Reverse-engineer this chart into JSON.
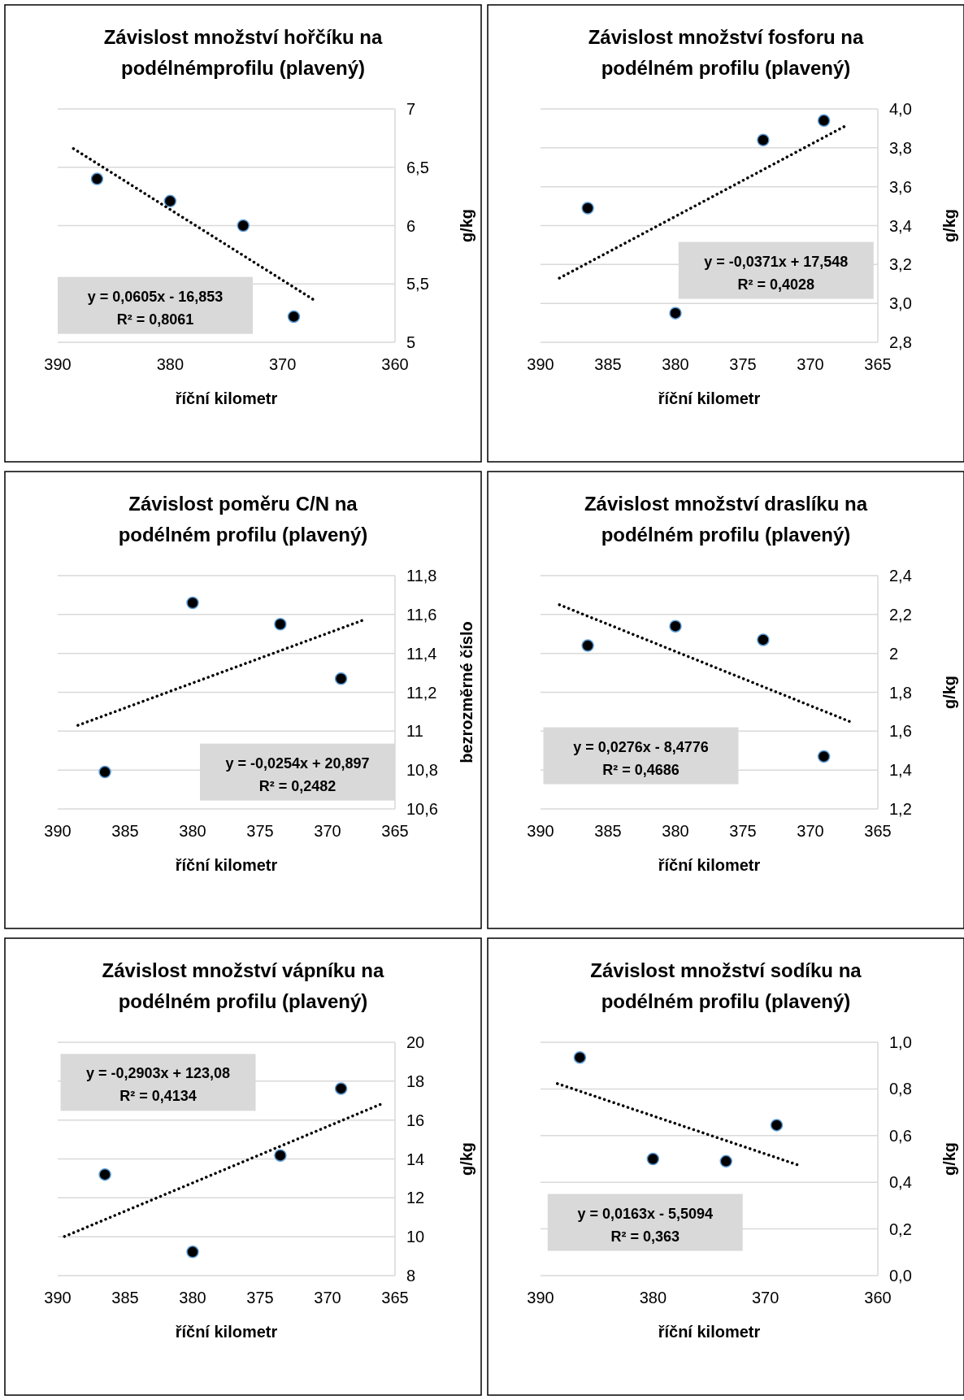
{
  "chart_data": [
    {
      "type": "scatter",
      "title": "Závislost množství hořčíku na\npodélnémprofilu (plavený)",
      "xlabel": "říční kilometr",
      "ylabel": "g/kg",
      "xlim": [
        390,
        360
      ],
      "xticks": [
        390,
        380,
        370,
        360
      ],
      "ylim": [
        5,
        7
      ],
      "yticks": [
        5,
        {
          "value": 5.5,
          "label": "5,5"
        },
        6,
        {
          "value": 6.5,
          "label": "6,5"
        },
        7
      ],
      "grid": "y",
      "annotations": [
        "y = 0,0605x - 16,853",
        "R² = 0,8061"
      ],
      "series": [
        {
          "type": "scatter",
          "color": "#000000",
          "marker": "circle",
          "x": [
            386.5,
            380,
            373.5,
            369
          ],
          "values": [
            6.4,
            6.21,
            6.0,
            5.22
          ]
        },
        {
          "type": "line",
          "color": "#000000",
          "marker": "none",
          "line_style": "dotted",
          "x": [
            388.6,
            367
          ],
          "values": [
            6.66,
            5.35
          ]
        }
      ]
    },
    {
      "type": "scatter",
      "title": "Závislost množství fosforu na\npodélném profilu (plavený)",
      "xlabel": "říční kilometr",
      "ylabel": "g/kg",
      "xlim": [
        390,
        365
      ],
      "xticks": [
        390,
        385,
        380,
        375,
        370,
        365
      ],
      "ylim": [
        2.8,
        4.0
      ],
      "yticks": [
        {
          "value": 2.8,
          "label": "2,8"
        },
        {
          "value": 3.0,
          "label": "3,0"
        },
        {
          "value": 3.2,
          "label": "3,2"
        },
        {
          "value": 3.4,
          "label": "3,4"
        },
        {
          "value": 3.6,
          "label": "3,6"
        },
        {
          "value": 3.8,
          "label": "3,8"
        },
        {
          "value": 4.0,
          "label": "4,0"
        }
      ],
      "grid": "y",
      "annotations": [
        "y = -0,0371x + 17,548",
        "R² = 0,4028"
      ],
      "series": [
        {
          "type": "scatter",
          "color": "#000000",
          "marker": "circle",
          "x": [
            386.5,
            380,
            373.5,
            369
          ],
          "values": [
            3.49,
            2.95,
            3.84,
            3.94
          ]
        },
        {
          "type": "line",
          "color": "#000000",
          "marker": "none",
          "line_style": "dotted",
          "x": [
            388.6,
            367.2
          ],
          "values": [
            3.13,
            3.92
          ]
        }
      ]
    },
    {
      "type": "scatter",
      "title": "Závislost poměru C/N na\npodélném profilu (plavený)",
      "xlabel": "říční kilometr",
      "ylabel": "bezrozměrné číslo",
      "xlim": [
        390,
        365
      ],
      "xticks": [
        390,
        385,
        380,
        375,
        370,
        365
      ],
      "ylim": [
        10.6,
        11.8
      ],
      "yticks": [
        {
          "value": 10.6,
          "label": "10,6"
        },
        {
          "value": 10.8,
          "label": "10,8"
        },
        11,
        {
          "value": 11.2,
          "label": "11,2"
        },
        {
          "value": 11.4,
          "label": "11,4"
        },
        {
          "value": 11.6,
          "label": "11,6"
        },
        {
          "value": 11.8,
          "label": "11,8"
        }
      ],
      "grid": "y",
      "annotations": [
        "y = -0,0254x + 20,897",
        "R² = 0,2482"
      ],
      "series": [
        {
          "type": "scatter",
          "color": "#000000",
          "marker": "circle",
          "x": [
            386.5,
            380,
            373.5,
            369
          ],
          "values": [
            10.79,
            11.66,
            11.55,
            11.27
          ]
        },
        {
          "type": "line",
          "color": "#000000",
          "marker": "none",
          "line_style": "dotted",
          "x": [
            388.5,
            367.4
          ],
          "values": [
            11.03,
            11.57
          ]
        }
      ]
    },
    {
      "type": "scatter",
      "title": "Závislost množství draslíku na\npodélném profilu (plavený)",
      "xlabel": "říční kilometr",
      "ylabel": "g/kg",
      "xlim": [
        390,
        365
      ],
      "xticks": [
        390,
        385,
        380,
        375,
        370,
        365
      ],
      "ylim": [
        1.2,
        2.4
      ],
      "yticks": [
        {
          "value": 1.2,
          "label": "1,2"
        },
        {
          "value": 1.4,
          "label": "1,4"
        },
        {
          "value": 1.6,
          "label": "1,6"
        },
        {
          "value": 1.8,
          "label": "1,8"
        },
        2,
        {
          "value": 2.2,
          "label": "2,2"
        },
        {
          "value": 2.4,
          "label": "2,4"
        }
      ],
      "grid": "y",
      "annotations": [
        "y = 0,0276x - 8,4776",
        "R² = 0,4686"
      ],
      "series": [
        {
          "type": "scatter",
          "color": "#000000",
          "marker": "circle",
          "x": [
            386.5,
            380,
            373.5,
            369
          ],
          "values": [
            2.04,
            2.14,
            2.07,
            1.47
          ]
        },
        {
          "type": "line",
          "color": "#000000",
          "marker": "none",
          "line_style": "dotted",
          "x": [
            388.6,
            367.1
          ],
          "values": [
            2.25,
            1.65
          ]
        }
      ]
    },
    {
      "type": "scatter",
      "title": "Závislost množství vápníku na\npodélném profilu (plavený)",
      "xlabel": "říční kilometr",
      "ylabel": "g/kg",
      "xlim": [
        390,
        365
      ],
      "xticks": [
        390,
        385,
        380,
        375,
        370,
        365
      ],
      "ylim": [
        8,
        20
      ],
      "yticks": [
        8,
        10,
        12,
        14,
        16,
        18,
        20
      ],
      "grid": "y",
      "annotations": [
        "y = -0,2903x + 123,08",
        "R² = 0,4134"
      ],
      "series": [
        {
          "type": "scatter",
          "color": "#000000",
          "marker": "circle",
          "x": [
            386.5,
            380,
            373.5,
            369
          ],
          "values": [
            13.2,
            9.22,
            14.18,
            17.62
          ]
        },
        {
          "type": "line",
          "color": "#000000",
          "marker": "none",
          "line_style": "dotted",
          "x": [
            389.5,
            366
          ],
          "values": [
            10.01,
            16.83
          ]
        }
      ]
    },
    {
      "type": "scatter",
      "title": "Závislost množství sodíku na\npodélném profilu (plavený)",
      "xlabel": "říční kilometr",
      "ylabel": "g/kg",
      "xlim": [
        390,
        360
      ],
      "xticks": [
        390,
        380,
        370,
        360
      ],
      "ylim": [
        0,
        1.0
      ],
      "yticks": [
        {
          "value": 0,
          "label": "0,0"
        },
        {
          "value": 0.2,
          "label": "0,2"
        },
        {
          "value": 0.4,
          "label": "0,4"
        },
        {
          "value": 0.6,
          "label": "0,6"
        },
        {
          "value": 0.8,
          "label": "0,8"
        },
        {
          "value": 1.0,
          "label": "1,0"
        }
      ],
      "grid": "y",
      "annotations": [
        "y = 0,0163x - 5,5094",
        "R² = 0,363"
      ],
      "series": [
        {
          "type": "scatter",
          "color": "#000000",
          "marker": "circle",
          "x": [
            386.5,
            380,
            373.5,
            369
          ],
          "values": [
            0.935,
            0.5,
            0.49,
            0.645
          ]
        },
        {
          "type": "line",
          "color": "#000000",
          "marker": "none",
          "line_style": "dotted",
          "x": [
            388.5,
            366.9
          ],
          "values": [
            0.823,
            0.471
          ]
        }
      ]
    }
  ]
}
